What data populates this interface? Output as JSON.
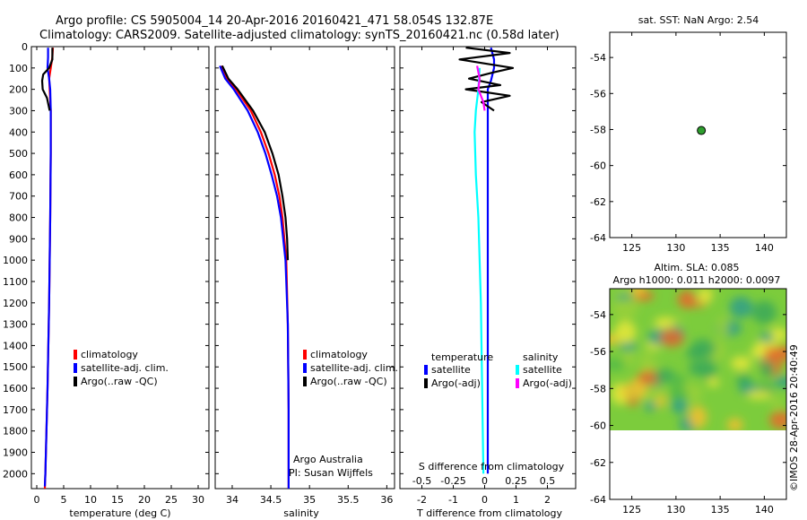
{
  "title": {
    "line1": "Argo profile: CS 5905004_14 20-Apr-2016 20160421_471 58.054S 132.87E",
    "line2": "Climatology: CARS2009. Satellite-adjusted climatology: synTS_20160421.nc (0.58d later)"
  },
  "footer_stamp": "©IMOS 28-Apr-2016 20:40:49",
  "colors": {
    "climatology": "#ff0000",
    "satellite": "#0000ff",
    "argo": "#000000",
    "sat_salinity": "#00ffff",
    "argo_salinity": "#ff00ff",
    "station_dot": "#2e9e2e"
  },
  "chart_data": [
    {
      "id": "temperature",
      "type": "line",
      "xlabel": "temperature (deg C)",
      "xlim": [
        -1,
        32
      ],
      "xticks": [
        0,
        5,
        10,
        15,
        20,
        25,
        30
      ],
      "ylim": [
        2070,
        0
      ],
      "yticks": [
        0,
        100,
        200,
        300,
        400,
        500,
        600,
        700,
        800,
        900,
        1000,
        1100,
        1200,
        1300,
        1400,
        1500,
        1600,
        1700,
        1800,
        1900,
        2000
      ],
      "legend": [
        "climatology",
        "satellite-adj. clim.",
        "Argo(..raw -QC)"
      ],
      "series": [
        {
          "name": "climatology",
          "color": "#ff0000",
          "depth": [
            5,
            50,
            100,
            150,
            200,
            300,
            500,
            800,
            1200,
            1600,
            2000,
            2070
          ],
          "values": [
            3.0,
            2.9,
            2.6,
            2.3,
            2.4,
            2.6,
            2.6,
            2.5,
            2.3,
            2.0,
            1.6,
            1.5
          ]
        },
        {
          "name": "satellite-adj. clim.",
          "color": "#0000ff",
          "depth": [
            5,
            50,
            100,
            150,
            200,
            300,
            500,
            800,
            1200,
            1600,
            2000,
            2060
          ],
          "values": [
            2.1,
            2.1,
            2.0,
            2.3,
            2.5,
            2.6,
            2.6,
            2.5,
            2.3,
            2.0,
            1.6,
            1.5
          ]
        },
        {
          "name": "Argo(..raw -QC)",
          "color": "#000000",
          "depth": [
            5,
            60,
            100,
            130,
            160,
            200,
            240,
            300
          ],
          "values": [
            2.9,
            2.9,
            2.3,
            1.2,
            1.0,
            1.1,
            1.9,
            2.4
          ]
        }
      ]
    },
    {
      "id": "salinity",
      "type": "line",
      "xlabel": "salinity",
      "xlim": [
        33.78,
        36.1
      ],
      "xticks": [
        34,
        34.5,
        35,
        35.5,
        36
      ],
      "ylim": [
        2070,
        0
      ],
      "legend": [
        "climatology",
        "satellite-adj. clim.",
        "Argo(..raw -QC)"
      ],
      "annotation": [
        "Argo Australia",
        "PI: Susan Wijffels"
      ],
      "series": [
        {
          "name": "climatology",
          "color": "#ff0000",
          "depth": [
            90,
            150,
            200,
            300,
            400,
            500,
            600,
            700,
            800,
            1000,
            1300,
            1700,
            2070
          ],
          "values": [
            33.86,
            33.93,
            34.05,
            34.24,
            34.37,
            34.47,
            34.55,
            34.61,
            34.65,
            34.7,
            34.72,
            34.73,
            34.73
          ]
        },
        {
          "name": "satellite-adj. clim.",
          "color": "#0000ff",
          "depth": [
            90,
            150,
            200,
            300,
            400,
            500,
            600,
            700,
            800,
            1000,
            1300,
            1700,
            2070
          ],
          "values": [
            33.84,
            33.91,
            34.02,
            34.2,
            34.33,
            34.43,
            34.51,
            34.58,
            34.63,
            34.69,
            34.72,
            34.73,
            34.73
          ]
        },
        {
          "name": "Argo(..raw -QC)",
          "color": "#000000",
          "depth": [
            90,
            150,
            200,
            300,
            400,
            500,
            600,
            700,
            800,
            900,
            1000
          ],
          "values": [
            33.87,
            33.95,
            34.07,
            34.27,
            34.42,
            34.52,
            34.6,
            34.65,
            34.69,
            34.71,
            34.72
          ]
        }
      ]
    },
    {
      "id": "differences",
      "type": "line",
      "xlabel": "T difference from climatology",
      "xlim": [
        -2.7,
        2.9
      ],
      "xticks": [
        -2,
        -1,
        0,
        1,
        2
      ],
      "top_axis_label": "S difference from climatology",
      "top_xticks": [
        "-0.5",
        "-0.25",
        "0",
        "0.25",
        "0.5"
      ],
      "legend_headers": [
        "temperature",
        "salinity"
      ],
      "legend": [
        "satellite",
        "Argo(-adj)",
        "satellite",
        "Argo(-adj)"
      ],
      "series": [
        {
          "name": "satellite",
          "group": "temperature",
          "color": "#0000ff",
          "depth": [
            5,
            60,
            100,
            160,
            200,
            300,
            500,
            800,
            1200,
            1600,
            2000
          ],
          "values": [
            0.2,
            0.3,
            0.3,
            0.2,
            0.1,
            0.1,
            0.1,
            0.1,
            0.1,
            0.1,
            0.1
          ]
        },
        {
          "name": "Argo(-adj)",
          "group": "temperature",
          "color": "#000000",
          "depth": [
            5,
            30,
            60,
            100,
            120,
            150,
            180,
            200,
            230,
            260,
            300
          ],
          "values": [
            -0.6,
            0.8,
            -0.8,
            0.9,
            0.3,
            -0.5,
            0.5,
            -0.6,
            0.8,
            -0.1,
            0.3
          ]
        },
        {
          "name": "satellite",
          "group": "salinity",
          "color": "#00ffff",
          "depth": [
            100,
            200,
            300,
            400,
            600,
            800,
            1200,
            1600,
            2000
          ],
          "values": [
            -0.04,
            -0.05,
            -0.07,
            -0.08,
            -0.07,
            -0.05,
            -0.03,
            -0.02,
            -0.01
          ]
        },
        {
          "name": "Argo(-adj)",
          "group": "salinity",
          "color": "#ff00ff",
          "depth": [
            90,
            150,
            200,
            260,
            300
          ],
          "values": [
            -0.06,
            -0.04,
            -0.05,
            -0.01,
            0.0
          ]
        }
      ]
    },
    {
      "id": "sst_map",
      "type": "scatter",
      "title": "sat. SST: NaN Argo: 2.54",
      "xlim": [
        122.5,
        142.5
      ],
      "xticks": [
        125,
        130,
        135,
        140
      ],
      "ylim": [
        -64,
        -52.6
      ],
      "yticks": [
        -54,
        -56,
        -58,
        -60,
        -62,
        -64
      ],
      "points": [
        {
          "lon": 132.87,
          "lat": -58.054
        }
      ]
    },
    {
      "id": "sla_map",
      "type": "heatmap",
      "title_lines": [
        "Altim. SLA: 0.085",
        "Argo h1000: 0.011 h2000: 0.0097"
      ],
      "xlim": [
        122.5,
        142.5
      ],
      "xticks": [
        125,
        130,
        135,
        140
      ],
      "ylim": [
        -64,
        -52.6
      ],
      "yticks": [
        -54,
        -56,
        -58,
        -60,
        -62,
        -64
      ],
      "data_lat_range": [
        -60,
        -52.6
      ]
    }
  ]
}
